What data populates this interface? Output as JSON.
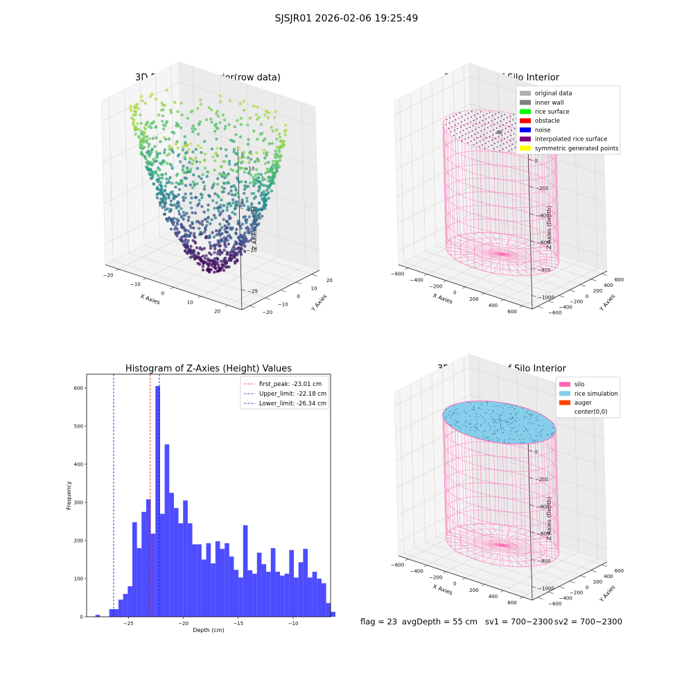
{
  "figure": {
    "suptitle": "SJSJR01 2026-02-06 19:25:49",
    "status": [
      "flag = 23",
      "avgDepth = 55 cm",
      "sv1 = 700~2300",
      "sv2 = 700~2300"
    ]
  },
  "panels": {
    "raw": {
      "title": "3D Plot of Silo Interior(row data)",
      "xlabel": "X Axies",
      "ylabel": "Y Axies",
      "zlabel": "Z Axies (Depth)",
      "xticks": [
        "−20",
        "−10",
        "0",
        "10",
        "20"
      ],
      "yticks": [
        "20",
        "10",
        "0",
        "−10",
        "−20"
      ],
      "zticks": [
        "−10",
        "−15",
        "−20",
        "−25"
      ],
      "colormap": [
        "#440154",
        "#3b528b",
        "#21908d",
        "#5dc863",
        "#fde725"
      ]
    },
    "classify": {
      "title": "3D classify of Silo Interior",
      "xlabel": "X Axies",
      "ylabel": "Y Axies",
      "zlabel": "Z Axies (Depth)",
      "xticks": [
        "−600",
        "−400",
        "−200",
        "0",
        "200",
        "400",
        "600"
      ],
      "yticks": [
        "600",
        "400",
        "200",
        "0",
        "−200",
        "−400",
        "−600"
      ],
      "zticks": [
        "0",
        "−200",
        "−400",
        "−600",
        "−800",
        "−1000"
      ],
      "legend": [
        {
          "label": "original data",
          "color": "#b0b0b0"
        },
        {
          "label": "inner wall",
          "color": "#808080"
        },
        {
          "label": "rice surface",
          "color": "#00ff00"
        },
        {
          "label": "obstacle",
          "color": "#ff0000"
        },
        {
          "label": "noise",
          "color": "#0000ff"
        },
        {
          "label": "interpolated rice surface",
          "color": "#800080"
        },
        {
          "label": "symmetric generated points",
          "color": "#ffff00"
        }
      ],
      "mesh_color": "#ff69b4"
    },
    "hist": {
      "title": "Histogram of Z-Axies (Height) Values",
      "xlabel": "Depth (cm)",
      "ylabel": "Frequency",
      "bar_color": "#4d4dff",
      "legend": [
        {
          "label": "first_peak: -23.01 cm",
          "color": "#ff0000"
        },
        {
          "label": "Upper_limit: -22.18 cm",
          "color": "#0000cc"
        },
        {
          "label": "Lower_limit: -26.34 cm",
          "color": "#0000cc"
        }
      ]
    },
    "sim": {
      "title": "3D simulation of Silo Interior",
      "xlabel": "X Axies",
      "ylabel": "Y Axies",
      "zlabel": "Z Axies (Depth)",
      "xticks": [
        "−600",
        "−400",
        "−200",
        "0",
        "200",
        "400",
        "600"
      ],
      "yticks": [
        "600",
        "400",
        "200",
        "0",
        "−200",
        "−400",
        "−600"
      ],
      "zticks": [
        "0",
        "−200",
        "−400",
        "−600",
        "−800",
        "−1000"
      ],
      "legend": [
        {
          "label": "silo",
          "color": "#ff69b4"
        },
        {
          "label": "rice simulation",
          "color": "#87ceeb"
        },
        {
          "label": "auger",
          "color": "#ff4500"
        },
        {
          "label": "center(0,0)",
          "color": "none"
        }
      ]
    }
  },
  "chart_data": [
    {
      "type": "scatter",
      "title": "3D Plot of Silo Interior(row data)",
      "xlabel": "X Axies",
      "ylabel": "Y Axies",
      "zlabel": "Z Axies (Depth)",
      "xlim": [
        -27,
        27
      ],
      "ylim": [
        -27,
        27
      ],
      "zlim": [
        -28,
        -8
      ],
      "shape": "paraboloid bowl, z = -28 + 18*(r/27)^2",
      "colormap": "viridis by depth"
    },
    {
      "type": "scatter",
      "title": "3D classify of Silo Interior",
      "xlim": [
        -600,
        600
      ],
      "ylim": [
        -600,
        600
      ],
      "zlim": [
        -1000,
        0
      ],
      "silo_radius": 480,
      "silo_top": -100,
      "silo_bottom": -1000
    },
    {
      "type": "bar",
      "title": "Histogram of Z-Axies (Height) Values",
      "xlabel": "Depth (cm)",
      "ylabel": "Frequency",
      "xlim": [
        -28.8,
        -6.6
      ],
      "ylim": [
        0,
        636
      ],
      "xticks": [
        -25,
        -20,
        -15,
        -10
      ],
      "yticks": [
        0,
        100,
        200,
        300,
        400,
        500,
        600
      ],
      "bin_start": -28.0,
      "bin_width": 0.42,
      "values": [
        5,
        0,
        0,
        20,
        20,
        45,
        60,
        80,
        248,
        180,
        275,
        308,
        218,
        605,
        270,
        452,
        325,
        285,
        245,
        305,
        245,
        190,
        190,
        150,
        193,
        140,
        198,
        178,
        193,
        158,
        123,
        103,
        240,
        122,
        113,
        168,
        138,
        118,
        180,
        118,
        108,
        113,
        175,
        103,
        143,
        178,
        103,
        118,
        100,
        88,
        36,
        13
      ],
      "lines": [
        {
          "name": "first_peak: -23.01 cm",
          "x": -23.01,
          "color": "#ff0000"
        },
        {
          "name": "Upper_limit: -22.18 cm",
          "x": -22.18,
          "color": "#0000cc"
        },
        {
          "name": "Lower_limit: -26.34 cm",
          "x": -26.34,
          "color": "#0000cc"
        }
      ],
      "legend_position": "top-right"
    },
    {
      "type": "scatter",
      "title": "3D simulation of Silo Interior",
      "xlim": [
        -600,
        600
      ],
      "ylim": [
        -600,
        600
      ],
      "zlim": [
        -1000,
        0
      ],
      "silo_radius": 480,
      "silo_top": -100,
      "silo_bottom": -1000
    }
  ]
}
